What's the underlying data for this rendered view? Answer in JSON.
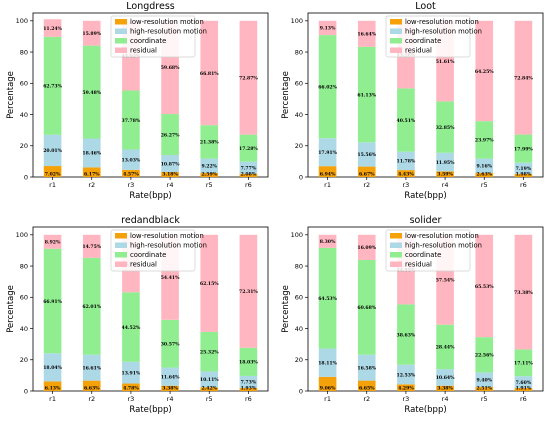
{
  "colors": {
    "low-resolution motion": "#f5a20a",
    "high-resolution motion": "#add8e6",
    "coordinate": "#90ee90",
    "residual": "#ffb6c1"
  },
  "chart_data": [
    {
      "type": "bar",
      "title": "Longdress",
      "xlabel": "Rate(bpp)",
      "ylabel": "Percentage",
      "ylim": [
        0,
        105
      ],
      "yticks": [
        0,
        20,
        40,
        60,
        80,
        100
      ],
      "legend_position": "top",
      "categories": [
        "r1",
        "r2",
        "r3",
        "r4",
        "r5",
        "r6"
      ],
      "series": [
        {
          "name": "low-resolution motion",
          "values": [
            7.02,
            6.17,
            4.57,
            3.18,
            2.59,
            2.08
          ],
          "labels": [
            "7.02%",
            "6.17%",
            "4.57%",
            "3.18%",
            "2.59%",
            "2.08%"
          ]
        },
        {
          "name": "high-resolution motion",
          "values": [
            20.01,
            18.46,
            13.03,
            10.87,
            9.22,
            7.77
          ],
          "labels": [
            "20.01%",
            "18.46%",
            "13.03%",
            "10.87%",
            "9.22%",
            "7.77%"
          ]
        },
        {
          "name": "coordinate",
          "values": [
            62.73,
            59.48,
            37.78,
            26.27,
            21.38,
            17.28
          ],
          "labels": [
            "62.73%",
            "59.48%",
            "37.78%",
            "26.27%",
            "21.38%",
            "17.28%"
          ]
        },
        {
          "name": "residual",
          "values": [
            11.24,
            15.89,
            44.62,
            59.68,
            66.81,
            72.87
          ],
          "labels": [
            "11.24%",
            "15.89%",
            "44.62%",
            "59.68%",
            "66.81%",
            "72.87%"
          ]
        }
      ]
    },
    {
      "type": "bar",
      "title": "Loot",
      "xlabel": "Rate(bpp)",
      "ylabel": "Percentage",
      "ylim": [
        0,
        105
      ],
      "yticks": [
        0,
        20,
        40,
        60,
        80,
        100
      ],
      "legend_position": "top",
      "categories": [
        "r1",
        "r2",
        "r3",
        "r4",
        "r5",
        "r6"
      ],
      "series": [
        {
          "name": "low-resolution motion",
          "values": [
            6.94,
            6.67,
            4.43,
            3.59,
            2.63,
            1.98
          ],
          "labels": [
            "6.94%",
            "6.67%",
            "4.43%",
            "3.59%",
            "2.63%",
            "1.98%"
          ]
        },
        {
          "name": "high-resolution motion",
          "values": [
            17.91,
            15.56,
            11.78,
            11.95,
            9.16,
            7.19
          ],
          "labels": [
            "17.91%",
            "15.56%",
            "11.78%",
            "11.95%",
            "9.16%",
            "7.19%"
          ]
        },
        {
          "name": "coordinate",
          "values": [
            66.02,
            61.13,
            40.51,
            32.85,
            23.97,
            17.99
          ],
          "labels": [
            "66.02%",
            "61.13%",
            "40.51%",
            "32.85%",
            "23.97%",
            "17.99%"
          ]
        },
        {
          "name": "residual",
          "values": [
            9.13,
            16.64,
            43.28,
            51.61,
            64.25,
            72.84
          ],
          "labels": [
            "9.13%",
            "16.64%",
            "43.28%",
            "51.61%",
            "64.25%",
            "72.84%"
          ]
        }
      ]
    },
    {
      "type": "bar",
      "title": "redandblack",
      "xlabel": "Rate(bpp)",
      "ylabel": "Percentage",
      "ylim": [
        0,
        105
      ],
      "yticks": [
        0,
        20,
        40,
        60,
        80,
        100
      ],
      "legend_position": "top",
      "categories": [
        "r1",
        "r2",
        "r3",
        "r4",
        "r5",
        "r6"
      ],
      "series": [
        {
          "name": "low-resolution motion",
          "values": [
            6.13,
            6.63,
            4.78,
            3.38,
            2.42,
            1.93
          ],
          "labels": [
            "6.13%",
            "6.63%",
            "4.78%",
            "3.38%",
            "2.42%",
            "1.93%"
          ]
        },
        {
          "name": "high-resolution motion",
          "values": [
            18.04,
            16.61,
            13.91,
            11.64,
            10.11,
            7.73
          ],
          "labels": [
            "18.04%",
            "16.61%",
            "13.91%",
            "11.64%",
            "10.11%",
            "7.73%"
          ]
        },
        {
          "name": "coordinate",
          "values": [
            66.91,
            62.01,
            44.52,
            30.57,
            25.32,
            18.03
          ],
          "labels": [
            "66.91%",
            "62.01%",
            "44.52%",
            "30.57%",
            "25.32%",
            "18.03%"
          ]
        },
        {
          "name": "residual",
          "values": [
            8.92,
            14.75,
            36.79,
            54.41,
            62.15,
            72.31
          ],
          "labels": [
            "8.92%",
            "14.75%",
            "36.79%",
            "54.41%",
            "62.15%",
            "72.31%"
          ]
        }
      ]
    },
    {
      "type": "bar",
      "title": "solider",
      "xlabel": "Rate(bpp)",
      "ylabel": "Percentage",
      "ylim": [
        0,
        105
      ],
      "yticks": [
        0,
        20,
        40,
        60,
        80,
        100
      ],
      "legend_position": "top",
      "categories": [
        "r1",
        "r2",
        "r3",
        "r4",
        "r5",
        "r6"
      ],
      "series": [
        {
          "name": "low-resolution motion",
          "values": [
            9.06,
            6.65,
            4.29,
            3.38,
            2.51,
            1.91
          ],
          "labels": [
            "9.06%",
            "6.65%",
            "4.29%",
            "3.38%",
            "2.51%",
            "1.91%"
          ]
        },
        {
          "name": "high-resolution motion",
          "values": [
            18.11,
            16.58,
            12.53,
            10.64,
            9.4,
            7.6
          ],
          "labels": [
            "18.11%",
            "16.58%",
            "12.53%",
            "10.64%",
            "9.40%",
            "7.60%"
          ]
        },
        {
          "name": "coordinate",
          "values": [
            64.53,
            60.68,
            38.63,
            28.44,
            22.56,
            17.11
          ],
          "labels": [
            "64.53%",
            "60.68%",
            "38.63%",
            "28.44%",
            "22.56%",
            "17.11%"
          ]
        },
        {
          "name": "residual",
          "values": [
            8.3,
            16.09,
            44.55,
            57.54,
            65.53,
            73.38
          ],
          "labels": [
            "8.30%",
            "16.09%",
            "44.55%",
            "57.54%",
            "65.53%",
            "73.38%"
          ]
        }
      ]
    }
  ]
}
